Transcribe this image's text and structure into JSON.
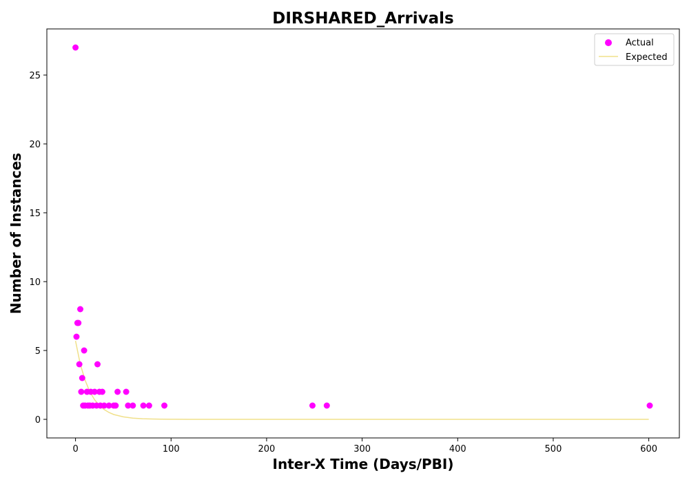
{
  "chart_data": {
    "type": "scatter",
    "title": "DIRSHARED_Arrivals",
    "xlabel": "Inter-X Time (Days/PBI)",
    "ylabel": "Number of Instances",
    "xlim": [
      -30,
      632
    ],
    "ylim": [
      -1.35,
      28.35
    ],
    "x_ticks": [
      0,
      100,
      200,
      300,
      400,
      500,
      600
    ],
    "y_ticks": [
      0,
      5,
      10,
      15,
      20,
      25
    ],
    "grid": false,
    "legend_position": "top-right",
    "series": [
      {
        "name": "Actual",
        "kind": "scatter",
        "color": "#ff00ff",
        "points": [
          [
            0,
            27
          ],
          [
            1,
            6
          ],
          [
            2,
            7
          ],
          [
            3,
            7
          ],
          [
            4,
            4
          ],
          [
            5,
            8
          ],
          [
            6,
            2
          ],
          [
            7,
            3
          ],
          [
            8,
            1
          ],
          [
            9,
            5
          ],
          [
            10,
            1
          ],
          [
            12,
            2
          ],
          [
            13,
            1
          ],
          [
            15,
            1
          ],
          [
            16,
            2
          ],
          [
            18,
            1
          ],
          [
            20,
            2
          ],
          [
            22,
            1
          ],
          [
            23,
            4
          ],
          [
            25,
            2
          ],
          [
            26,
            1
          ],
          [
            28,
            2
          ],
          [
            30,
            1
          ],
          [
            35,
            1
          ],
          [
            40,
            1
          ],
          [
            42,
            1
          ],
          [
            44,
            2
          ],
          [
            53,
            2
          ],
          [
            55,
            1
          ],
          [
            60,
            1
          ],
          [
            71,
            1
          ],
          [
            77,
            1
          ],
          [
            93,
            1
          ],
          [
            248,
            1
          ],
          [
            263,
            1
          ],
          [
            601,
            1
          ]
        ]
      },
      {
        "name": "Expected",
        "kind": "line",
        "color": "#f0e08a",
        "points": [
          [
            0,
            5.7
          ],
          [
            5,
            4.0
          ],
          [
            10,
            2.85
          ],
          [
            15,
            2.0
          ],
          [
            20,
            1.42
          ],
          [
            25,
            1.0
          ],
          [
            30,
            0.71
          ],
          [
            35,
            0.5
          ],
          [
            40,
            0.35
          ],
          [
            50,
            0.18
          ],
          [
            60,
            0.09
          ],
          [
            70,
            0.045
          ],
          [
            80,
            0.022
          ],
          [
            90,
            0.011
          ],
          [
            100,
            0.0056
          ],
          [
            120,
            0.0014
          ],
          [
            150,
            0.0002
          ],
          [
            200,
            0
          ],
          [
            300,
            0
          ],
          [
            400,
            0
          ],
          [
            500,
            0
          ],
          [
            600,
            0
          ]
        ]
      }
    ]
  }
}
